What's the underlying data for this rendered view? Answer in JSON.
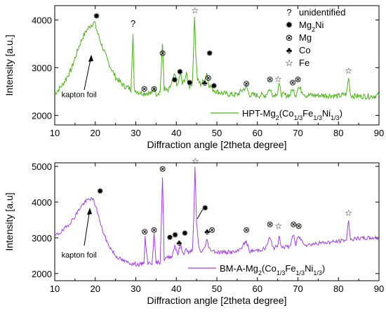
{
  "chart_data": [
    {
      "type": "line",
      "xlabel": "Diffraction angle [2theta degree]",
      "ylabel": "Intensity [a.u.]",
      "xlim": [
        10,
        90
      ],
      "ylim": [
        1800,
        4300
      ],
      "xticks": [
        10,
        20,
        30,
        40,
        50,
        60,
        70,
        80,
        90
      ],
      "yticks": [
        2000,
        3000,
        4000
      ],
      "series": [
        {
          "name": "HPT-Mg2(Co1/3Fe1/3Ni1/3)",
          "label_parts": [
            "HPT-Mg",
            "2",
            "(Co",
            "1/3",
            "Fe",
            "1/3",
            "Ni",
            "1/3",
            ")"
          ],
          "color": "#4caf1a",
          "x": [
            10,
            12,
            14,
            15,
            16,
            17,
            18,
            19,
            19.8,
            20.5,
            21.5,
            23,
            25,
            27,
            28.8,
            29.3,
            29.6,
            30,
            31,
            32,
            33,
            34,
            34.5,
            35,
            36,
            36.6,
            37,
            38,
            39,
            39.6,
            40.3,
            41,
            41.5,
            42.5,
            43.3,
            44,
            44.2,
            44.5,
            44.8,
            45.2,
            46,
            47,
            47.5,
            48,
            49,
            50,
            52,
            55,
            57.3,
            58,
            60,
            62,
            63,
            64,
            65,
            65.3,
            66,
            68,
            68.7,
            69.5,
            70,
            72,
            75,
            78,
            80,
            82,
            82.5,
            83,
            85,
            88,
            90
          ],
          "y": [
            2450,
            2650,
            2950,
            3200,
            3450,
            3650,
            3800,
            3900,
            3950,
            3750,
            3500,
            3150,
            2800,
            2620,
            2550,
            3700,
            2550,
            2520,
            2480,
            2470,
            2470,
            2450,
            2600,
            2450,
            2500,
            3500,
            2550,
            2500,
            2700,
            2850,
            2600,
            2900,
            2650,
            2850,
            2600,
            2700,
            3300,
            4100,
            3300,
            2750,
            2650,
            2750,
            2900,
            2650,
            2550,
            2500,
            2450,
            2430,
            2600,
            2430,
            2420,
            2420,
            2550,
            2420,
            2480,
            2650,
            2430,
            2420,
            2550,
            2420,
            2600,
            2420,
            2420,
            2420,
            2400,
            2450,
            2800,
            2420,
            2400,
            2400,
            2420
          ],
          "noise": 60
        }
      ],
      "annotations": [
        {
          "text": "?",
          "x": 29.3,
          "y": 3860
        },
        {
          "text": "kapton foil",
          "x": 16,
          "y": 2380
        }
      ],
      "markers": [
        {
          "phase": "Mg2Ni",
          "x": 20.3,
          "y": 4020
        },
        {
          "phase": "Mg",
          "x": 32.1,
          "y": 2500
        },
        {
          "phase": "Mg",
          "x": 34.5,
          "y": 2500
        },
        {
          "phase": "Mg",
          "x": 36.6,
          "y": 3250
        },
        {
          "phase": "Mg2Ni",
          "x": 39.6,
          "y": 2680
        },
        {
          "phase": "Mg2Ni",
          "x": 40.9,
          "y": 2850
        },
        {
          "phase": "Mg2Ni",
          "x": 43.3,
          "y": 2620
        },
        {
          "phase": "Fe",
          "x": 44.6,
          "y": 4140
        },
        {
          "phase": "Co",
          "x": 47.0,
          "y": 2620
        },
        {
          "phase": "Mg",
          "x": 47.9,
          "y": 2730
        },
        {
          "phase": "Mg2Ni",
          "x": 48.2,
          "y": 3240
        },
        {
          "phase": "Mg2Ni",
          "x": 49.3,
          "y": 2560
        },
        {
          "phase": "Mg",
          "x": 57.3,
          "y": 2610
        },
        {
          "phase": "Mg",
          "x": 63.1,
          "y": 2700
        },
        {
          "phase": "Fe",
          "x": 65.1,
          "y": 2700
        },
        {
          "phase": "Mg",
          "x": 68.7,
          "y": 2630
        },
        {
          "phase": "Mg",
          "x": 70.0,
          "y": 2700
        },
        {
          "phase": "Fe",
          "x": 82.5,
          "y": 2870
        }
      ]
    },
    {
      "type": "line",
      "xlabel": "Diffraction angle [2theta degree]",
      "ylabel": "Intensity [a.u]",
      "xlim": [
        10,
        90
      ],
      "ylim": [
        1800,
        5100
      ],
      "xticks": [
        10,
        20,
        30,
        40,
        50,
        60,
        70,
        80,
        90
      ],
      "yticks": [
        2000,
        3000,
        4000,
        5000
      ],
      "series": [
        {
          "name": "BM-A-Mg2(Co1/3Fe1/3Ni1/3)",
          "label_parts": [
            "BM-A-Mg",
            "2",
            "(Co",
            "1/3",
            "Fe",
            "1/3",
            "Ni",
            "1/3",
            ")"
          ],
          "color": "#a040e0",
          "x": [
            10,
            12,
            14,
            15,
            16,
            17,
            18,
            18.8,
            19.6,
            20.5,
            21.5,
            23,
            25,
            27,
            29,
            31,
            32,
            32.3,
            33,
            34,
            34.5,
            35,
            36,
            36.6,
            37,
            38,
            39,
            39.6,
            40.4,
            41,
            41.7,
            42.5,
            43,
            44,
            44.3,
            44.6,
            45,
            45.6,
            46,
            47,
            47.6,
            48,
            49,
            50,
            52,
            55,
            57.3,
            58,
            60,
            62,
            63,
            64,
            65,
            65.3,
            66,
            68,
            68.8,
            69.5,
            70,
            72,
            75,
            78,
            80,
            82,
            82.5,
            83,
            85,
            88,
            90
          ],
          "y": [
            3050,
            3200,
            3450,
            3600,
            3800,
            3950,
            4050,
            4100,
            4050,
            3750,
            3300,
            2850,
            2500,
            2350,
            2280,
            2250,
            2300,
            3000,
            2280,
            2300,
            3100,
            2300,
            2320,
            4700,
            2400,
            2450,
            2500,
            2800,
            2550,
            2800,
            2550,
            2700,
            2550,
            2700,
            3500,
            4950,
            3400,
            2700,
            2600,
            2700,
            3000,
            2700,
            2650,
            2600,
            2600,
            2600,
            2900,
            2620,
            2650,
            2700,
            3000,
            2720,
            2750,
            3050,
            2750,
            2750,
            3100,
            2780,
            3050,
            2800,
            2850,
            2880,
            2900,
            2950,
            3500,
            2950,
            2980,
            3000,
            3000
          ],
          "noise": 55
        }
      ],
      "annotations": [
        {
          "text": "kapton foil",
          "x": 16,
          "y": 2450
        }
      ],
      "markers": [
        {
          "phase": "Mg2Ni",
          "x": 21.2,
          "y": 4230
        },
        {
          "phase": "Mg",
          "x": 32.2,
          "y": 3100
        },
        {
          "phase": "Mg",
          "x": 34.5,
          "y": 3150
        },
        {
          "phase": "Mg",
          "x": 36.6,
          "y": 4850
        },
        {
          "phase": "Mg2Ni",
          "x": 38.4,
          "y": 2930
        },
        {
          "phase": "Mg2Ni",
          "x": 39.7,
          "y": 3000
        },
        {
          "phase": "Co",
          "x": 40.7,
          "y": 2780
        },
        {
          "phase": "Mg2Ni",
          "x": 42.1,
          "y": 3050
        },
        {
          "phase": "Fe",
          "x": 44.7,
          "y": 5070
        },
        {
          "phase": "Mg2Ni",
          "x": 47.1,
          "y": 3750
        },
        {
          "phase": "Co",
          "x": 47.6,
          "y": 3100
        },
        {
          "phase": "Mg",
          "x": 48.8,
          "y": 3150
        },
        {
          "phase": "Mg",
          "x": 57.3,
          "y": 3150
        },
        {
          "phase": "Mg",
          "x": 63.1,
          "y": 3300
        },
        {
          "phase": "Fe",
          "x": 65.2,
          "y": 3250
        },
        {
          "phase": "Mg",
          "x": 68.9,
          "y": 3300
        },
        {
          "phase": "Mg",
          "x": 70.2,
          "y": 3250
        },
        {
          "phase": "Fe",
          "x": 82.5,
          "y": 3620
        }
      ]
    }
  ],
  "legend": {
    "items": [
      {
        "phase": "?",
        "label": "unidentified"
      },
      {
        "phase": "Mg2Ni",
        "label": "Mg",
        "sub": "2",
        "tail": "Ni"
      },
      {
        "phase": "Mg",
        "label": "Mg"
      },
      {
        "phase": "Co",
        "label": "Co"
      },
      {
        "phase": "Fe",
        "label": "Fe"
      }
    ]
  },
  "symbols": {
    "Mg2Ni": "✹",
    "Mg": "⊗",
    "Co": "♣",
    "Fe": "☆",
    "?": "?"
  }
}
